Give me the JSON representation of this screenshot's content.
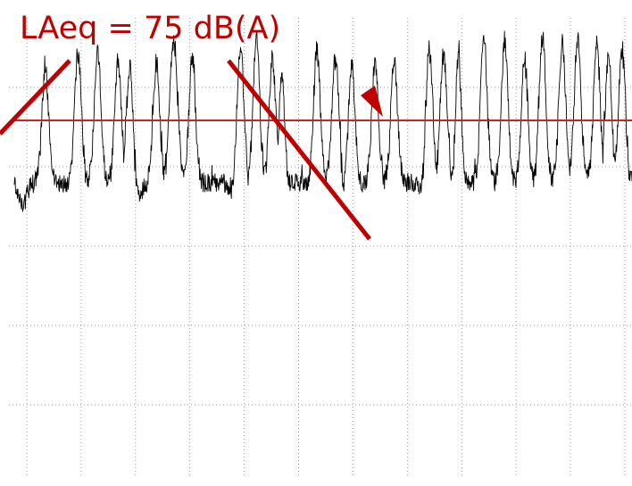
{
  "chart_data": {
    "type": "line",
    "title": "",
    "xlabel": "",
    "ylabel": "",
    "xlim": [
      0,
      1000
    ],
    "ylim": [
      0,
      100
    ],
    "grid": true,
    "grid_vertical_count": 12,
    "grid_horizontal_count": 5,
    "reference_line": {
      "value": 75,
      "color": "#cc2222"
    },
    "annotation": {
      "text": "LAeq = 75 dB(A)",
      "color": "#c00000"
    },
    "series": [
      {
        "color": "#000000",
        "baseline": 61,
        "noise_amplitude": 2.2,
        "valleys": [
          {
            "x": 14,
            "depth": 4.5
          },
          {
            "x": 200,
            "depth": 4
          },
          {
            "x": 356,
            "depth": 3
          },
          {
            "x": 540,
            "depth": 2.5
          },
          {
            "x": 658,
            "depth": 2
          },
          {
            "x": 820,
            "depth": 1.5
          }
        ],
        "peaks": [
          {
            "x": 50,
            "y": 88,
            "width": 5
          },
          {
            "x": 103,
            "y": 92,
            "width": 5
          },
          {
            "x": 135,
            "y": 92,
            "width": 5
          },
          {
            "x": 168,
            "y": 89,
            "width": 5
          },
          {
            "x": 187,
            "y": 88,
            "width": 5
          },
          {
            "x": 230,
            "y": 89,
            "width": 5
          },
          {
            "x": 258,
            "y": 94,
            "width": 6
          },
          {
            "x": 288,
            "y": 90,
            "width": 5
          },
          {
            "x": 366,
            "y": 94,
            "width": 5
          },
          {
            "x": 392,
            "y": 94,
            "width": 5
          },
          {
            "x": 418,
            "y": 90,
            "width": 5
          },
          {
            "x": 433,
            "y": 86,
            "width": 4
          },
          {
            "x": 490,
            "y": 92,
            "width": 5
          },
          {
            "x": 520,
            "y": 90,
            "width": 5
          },
          {
            "x": 546,
            "y": 90,
            "width": 5
          },
          {
            "x": 584,
            "y": 89,
            "width": 5
          },
          {
            "x": 615,
            "y": 90,
            "width": 5
          },
          {
            "x": 672,
            "y": 92,
            "width": 5
          },
          {
            "x": 695,
            "y": 91,
            "width": 5
          },
          {
            "x": 719,
            "y": 91,
            "width": 4
          },
          {
            "x": 760,
            "y": 95,
            "width": 5
          },
          {
            "x": 794,
            "y": 94,
            "width": 5
          },
          {
            "x": 826,
            "y": 90,
            "width": 5
          },
          {
            "x": 855,
            "y": 95,
            "width": 5
          },
          {
            "x": 887,
            "y": 94,
            "width": 5
          },
          {
            "x": 912,
            "y": 95,
            "width": 5
          },
          {
            "x": 943,
            "y": 94,
            "width": 5
          },
          {
            "x": 962,
            "y": 90,
            "width": 5
          },
          {
            "x": 984,
            "y": 92,
            "width": 5
          }
        ]
      }
    ]
  }
}
